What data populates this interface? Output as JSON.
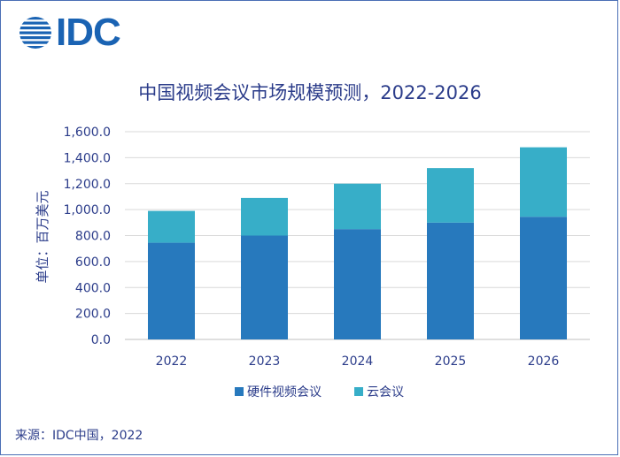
{
  "brand": {
    "logo_text": "IDC"
  },
  "source_note": "来源：IDC中国，2022",
  "colors": {
    "hardware": "#2779bd",
    "cloud": "#37aec8",
    "text": "#2b3c8a",
    "grid": "#d9d9d9"
  },
  "chart_data": {
    "type": "bar",
    "stacked": true,
    "title": "中国视频会议市场规模预测，2022-2026",
    "xlabel": "",
    "ylabel": "单位：百万美元",
    "categories": [
      "2022",
      "2023",
      "2024",
      "2025",
      "2026"
    ],
    "series": [
      {
        "name": "硬件视频会议",
        "values": [
          745,
          800,
          850,
          900,
          945
        ]
      },
      {
        "name": "云会议",
        "values": [
          245,
          290,
          350,
          420,
          535
        ]
      }
    ],
    "ylim": [
      0,
      1600
    ],
    "yticks": [
      0,
      200,
      400,
      600,
      800,
      1000,
      1200,
      1400,
      1600
    ],
    "ytick_labels": [
      "0.0",
      "200.0",
      "400.0",
      "600.0",
      "800.0",
      "1,000.0",
      "1,200.0",
      "1,400.0",
      "1,600.0"
    ],
    "grid": true,
    "legend_position": "bottom-center"
  }
}
